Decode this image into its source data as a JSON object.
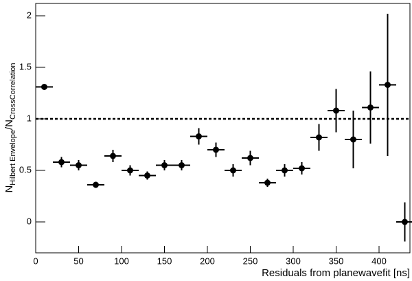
{
  "chart_data": {
    "type": "errorbar",
    "x_label": "Residuals from planewavefit [ns]",
    "y_label": [
      "N",
      "Hilbert Envelope",
      "/N",
      "CrossCorrelation"
    ],
    "x": [
      10,
      30,
      50,
      70,
      90,
      110,
      130,
      150,
      170,
      190,
      210,
      230,
      250,
      270,
      290,
      310,
      330,
      350,
      370,
      390,
      410,
      430
    ],
    "values": [
      1.31,
      0.58,
      0.55,
      0.36,
      0.64,
      0.5,
      0.45,
      0.55,
      0.55,
      0.83,
      0.7,
      0.5,
      0.62,
      0.38,
      0.5,
      0.52,
      0.82,
      1.08,
      0.8,
      1.11,
      1.33,
      0.0
    ],
    "errors": [
      0.0,
      0.05,
      0.05,
      0.03,
      0.06,
      0.05,
      0.04,
      0.05,
      0.05,
      0.08,
      0.07,
      0.06,
      0.07,
      0.04,
      0.06,
      0.06,
      0.13,
      0.21,
      0.28,
      0.35,
      0.69,
      0.19
    ],
    "bin_width": 20,
    "color": "#000000",
    "reference_line": 1,
    "xlim": [
      0,
      436
    ],
    "ylim": [
      -0.3,
      2.12
    ],
    "xticks": [
      0,
      50,
      100,
      150,
      200,
      250,
      300,
      350,
      400
    ],
    "yticks": [
      0,
      0.5,
      1,
      1.5,
      2
    ]
  }
}
